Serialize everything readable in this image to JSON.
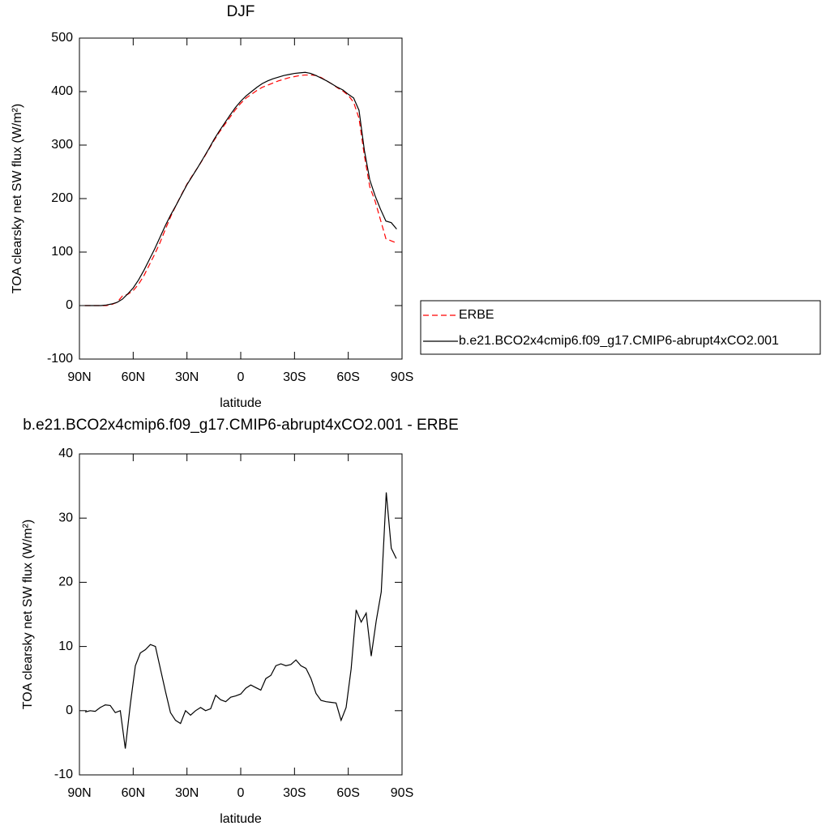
{
  "chart_data": [
    {
      "type": "line",
      "title": "DJF",
      "x_label": "latitude",
      "y_label": "TOA clearsky net SW flux (W/m²)",
      "xlim": [
        90,
        -90
      ],
      "xticks": [
        {
          "value": 90,
          "label": "90N"
        },
        {
          "value": 60,
          "label": "60N"
        },
        {
          "value": 30,
          "label": "30N"
        },
        0,
        {
          "value": -30,
          "label": "30S"
        },
        {
          "value": -60,
          "label": "60S"
        },
        {
          "value": -90,
          "label": "90S"
        }
      ],
      "ylim": [
        -100,
        500
      ],
      "yticks": [
        -100,
        0,
        100,
        200,
        300,
        400,
        500
      ],
      "legend": "right",
      "x": [
        87,
        84,
        81,
        78,
        75,
        72,
        69,
        66,
        63,
        60,
        57,
        54,
        51,
        48,
        45,
        42,
        39,
        36,
        33,
        30,
        27,
        24,
        21,
        18,
        15,
        12,
        9,
        6,
        3,
        0,
        -3,
        -6,
        -9,
        -12,
        -15,
        -18,
        -21,
        -24,
        -27,
        -30,
        -33,
        -36,
        -39,
        -42,
        -45,
        -48,
        -51,
        -54,
        -57,
        -60,
        -63,
        -66,
        -69,
        -72,
        -75,
        -78,
        -81,
        -84,
        -87
      ],
      "series": [
        {
          "name": "ERBE",
          "color": "#ff0000",
          "dashed": true,
          "values": [
            0,
            0,
            0,
            0,
            0,
            2,
            6,
            18,
            21,
            28,
            40,
            56,
            76,
            96,
            118,
            143,
            167,
            188,
            208,
            227,
            243,
            258,
            274,
            291,
            308,
            324,
            338,
            352,
            366,
            378,
            388,
            395,
            402,
            408,
            412,
            416,
            420,
            423,
            426,
            428,
            430,
            431,
            431,
            430,
            426,
            420,
            414,
            407,
            401,
            393,
            380,
            350,
            280,
            222,
            195,
            160,
            125,
            121,
            117
          ]
        },
        {
          "name": "b.e21.BCO2x4cmip6.f09_g17.CMIP6-abrupt4xCO2.001",
          "color": "#000000",
          "dashed": false,
          "values": [
            0,
            0,
            0,
            0,
            1,
            3,
            6,
            12,
            22,
            33,
            48,
            66,
            86,
            106,
            128,
            150,
            170,
            188,
            207,
            226,
            242,
            258,
            275,
            292,
            310,
            326,
            341,
            356,
            370,
            382,
            392,
            400,
            408,
            415,
            420,
            424,
            427,
            430,
            432,
            434,
            435,
            436,
            434,
            430,
            425,
            420,
            414,
            408,
            403,
            395,
            388,
            365,
            290,
            235,
            205,
            180,
            158,
            155,
            143
          ]
        }
      ]
    },
    {
      "type": "line",
      "title": "b.e21.BCO2x4cmip6.f09_g17.CMIP6-abrupt4xCO2.001 - ERBE",
      "x_label": "latitude",
      "y_label": "TOA clearsky net SW flux (W/m²)",
      "xlim": [
        90,
        -90
      ],
      "xticks": [
        {
          "value": 90,
          "label": "90N"
        },
        {
          "value": 60,
          "label": "60N"
        },
        {
          "value": 30,
          "label": "30N"
        },
        0,
        {
          "value": -30,
          "label": "30S"
        },
        {
          "value": -60,
          "label": "60S"
        },
        {
          "value": -90,
          "label": "90S"
        }
      ],
      "ylim": [
        -10,
        40
      ],
      "yticks": [
        -10,
        0,
        10,
        20,
        30,
        40
      ],
      "color": "#000000",
      "x": [
        86.8,
        84,
        81.2,
        78.4,
        75.6,
        72.8,
        70,
        67.2,
        64.4,
        61.6,
        58.8,
        56,
        53.2,
        50.4,
        47.6,
        44.8,
        42,
        39.2,
        36.4,
        33.6,
        30.8,
        28,
        25.2,
        22.4,
        19.6,
        16.8,
        14,
        11.2,
        8.4,
        5.6,
        2.8,
        0,
        -2.8,
        -5.6,
        -8.4,
        -11.2,
        -14,
        -16.8,
        -19.6,
        -22.4,
        -25.2,
        -28,
        -30.8,
        -33.6,
        -36.4,
        -39.2,
        -42,
        -44.8,
        -47.6,
        -50.4,
        -53.2,
        -56,
        -58.8,
        -61.6,
        -64.4,
        -67.2,
        -70,
        -72.8,
        -75.6,
        -78.4,
        -81.2,
        -84,
        -86.8
      ],
      "values": [
        -0.2,
        0,
        -0.1,
        0.5,
        0.9,
        0.8,
        -0.3,
        0,
        -5.9,
        1,
        7,
        9,
        9.5,
        10.3,
        10,
        6.5,
        3,
        -0.3,
        -1.5,
        -2,
        0,
        -0.7,
        0,
        0.5,
        0,
        0.3,
        2.4,
        1.7,
        1.4,
        2.1,
        2.3,
        2.6,
        3.5,
        4,
        3.6,
        3.2,
        5,
        5.5,
        7,
        7.3,
        7,
        7.2,
        7.9,
        7,
        6.6,
        5,
        2.7,
        1.6,
        1.4,
        1.3,
        1.2,
        -1.5,
        0.5,
        6.5,
        15.7,
        13.8,
        15.2,
        8.5,
        14,
        18.5,
        34,
        25.3,
        23.7
      ]
    }
  ]
}
